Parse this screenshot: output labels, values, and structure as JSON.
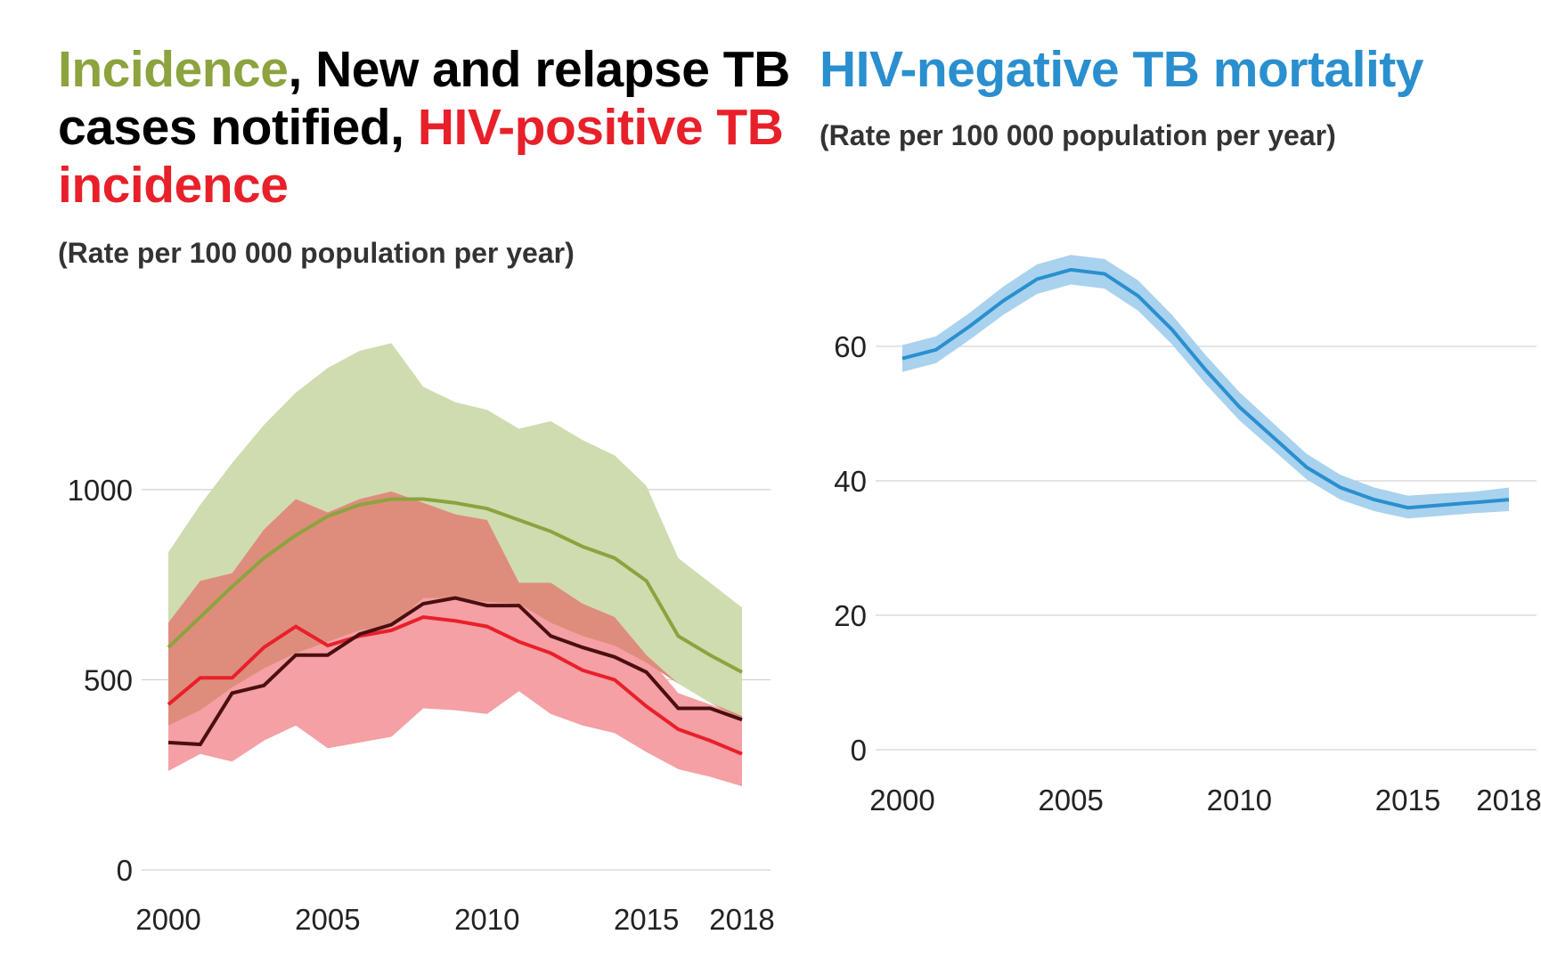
{
  "colors": {
    "incidence": "#8ca33e",
    "incidence_band": "#cfdcb0",
    "notified": "#000000",
    "notified_line": "#4a0f0f",
    "hiv_positive": "#e8202a",
    "hiv_band": "#f4a0a4",
    "overlap_band": "#de8d7c",
    "mortality": "#2a8fcf",
    "mortality_band": "#a9d2ee",
    "subtitle": "#333333",
    "grid": "#c8c8c8"
  },
  "left_panel": {
    "title_parts": [
      {
        "text": "Incidence",
        "color": "#8ca33e"
      },
      {
        "text": ", New and relapse TB cases notified, ",
        "color": "#000000"
      },
      {
        "text": "HIV-positive TB incidence",
        "color": "#e8202a"
      }
    ],
    "subtitle": "(Rate per 100 000 population per year)"
  },
  "right_panel": {
    "title": "HIV-negative TB mortality",
    "subtitle": "(Rate per 100 000 population per year)"
  },
  "chart_data": [
    {
      "type": "line",
      "title": "Incidence, New and relapse TB cases notified, HIV-positive TB incidence",
      "subtitle": "(Rate per 100 000 population per year)",
      "x": [
        2000,
        2001,
        2002,
        2003,
        2004,
        2005,
        2006,
        2007,
        2008,
        2009,
        2010,
        2011,
        2012,
        2013,
        2014,
        2015,
        2016,
        2017,
        2018
      ],
      "xticks": [
        2000,
        2005,
        2010,
        2015,
        2018
      ],
      "yticks": [
        0,
        500,
        1000
      ],
      "ylim": [
        0,
        1400
      ],
      "xlim": [
        2000,
        2018
      ],
      "grid": true,
      "series": [
        {
          "name": "Incidence",
          "values": [
            585,
            665,
            745,
            820,
            880,
            930,
            960,
            975,
            975,
            965,
            950,
            920,
            890,
            850,
            820,
            760,
            615,
            565,
            520
          ],
          "lower": [
            380,
            420,
            480,
            530,
            570,
            600,
            630,
            640,
            715,
            715,
            705,
            700,
            650,
            615,
            590,
            545,
            490,
            440,
            395
          ],
          "upper": [
            835,
            960,
            1070,
            1170,
            1255,
            1320,
            1365,
            1385,
            1270,
            1230,
            1210,
            1160,
            1180,
            1130,
            1090,
            1010,
            820,
            755,
            690
          ]
        },
        {
          "name": "New and relapse TB cases notified",
          "values": [
            335,
            330,
            465,
            485,
            565,
            565,
            620,
            645,
            700,
            715,
            695,
            695,
            615,
            585,
            560,
            520,
            425,
            425,
            395
          ]
        },
        {
          "name": "HIV-positive TB incidence",
          "values": [
            435,
            505,
            505,
            585,
            640,
            590,
            615,
            630,
            665,
            655,
            640,
            600,
            570,
            525,
            500,
            430,
            370,
            340,
            305
          ],
          "lower": [
            260,
            305,
            285,
            340,
            380,
            320,
            335,
            350,
            425,
            420,
            410,
            470,
            410,
            380,
            360,
            310,
            265,
            245,
            220
          ],
          "upper": [
            650,
            760,
            780,
            895,
            975,
            940,
            975,
            995,
            965,
            935,
            920,
            755,
            755,
            700,
            665,
            565,
            465,
            435,
            405
          ]
        }
      ]
    },
    {
      "type": "line",
      "title": "HIV-negative TB mortality",
      "subtitle": "(Rate per 100 000 population per year)",
      "x": [
        2000,
        2001,
        2002,
        2003,
        2004,
        2005,
        2006,
        2007,
        2008,
        2009,
        2010,
        2011,
        2012,
        2013,
        2014,
        2015,
        2016,
        2017,
        2018
      ],
      "xticks": [
        2000,
        2005,
        2010,
        2015,
        2018
      ],
      "yticks": [
        0,
        20,
        40,
        60
      ],
      "ylim": [
        0,
        80
      ],
      "xlim": [
        2000,
        2018
      ],
      "grid": true,
      "series": [
        {
          "name": "HIV-negative TB mortality",
          "values": [
            58.2,
            59.5,
            63.0,
            66.8,
            70.0,
            71.4,
            70.8,
            67.5,
            62.5,
            56.5,
            51.0,
            46.5,
            42.0,
            39.0,
            37.2,
            36.0,
            36.4,
            36.8,
            37.2
          ],
          "lower": [
            56.2,
            57.5,
            61.0,
            64.7,
            67.8,
            69.2,
            68.6,
            65.3,
            60.3,
            54.4,
            49.0,
            44.6,
            40.2,
            37.2,
            35.5,
            34.4,
            34.8,
            35.2,
            35.5
          ],
          "upper": [
            60.2,
            61.5,
            65.0,
            68.9,
            72.2,
            73.6,
            73.0,
            69.8,
            64.7,
            58.7,
            53.2,
            48.6,
            44.0,
            40.9,
            39.0,
            37.8,
            38.1,
            38.4,
            39.0
          ]
        }
      ]
    }
  ]
}
